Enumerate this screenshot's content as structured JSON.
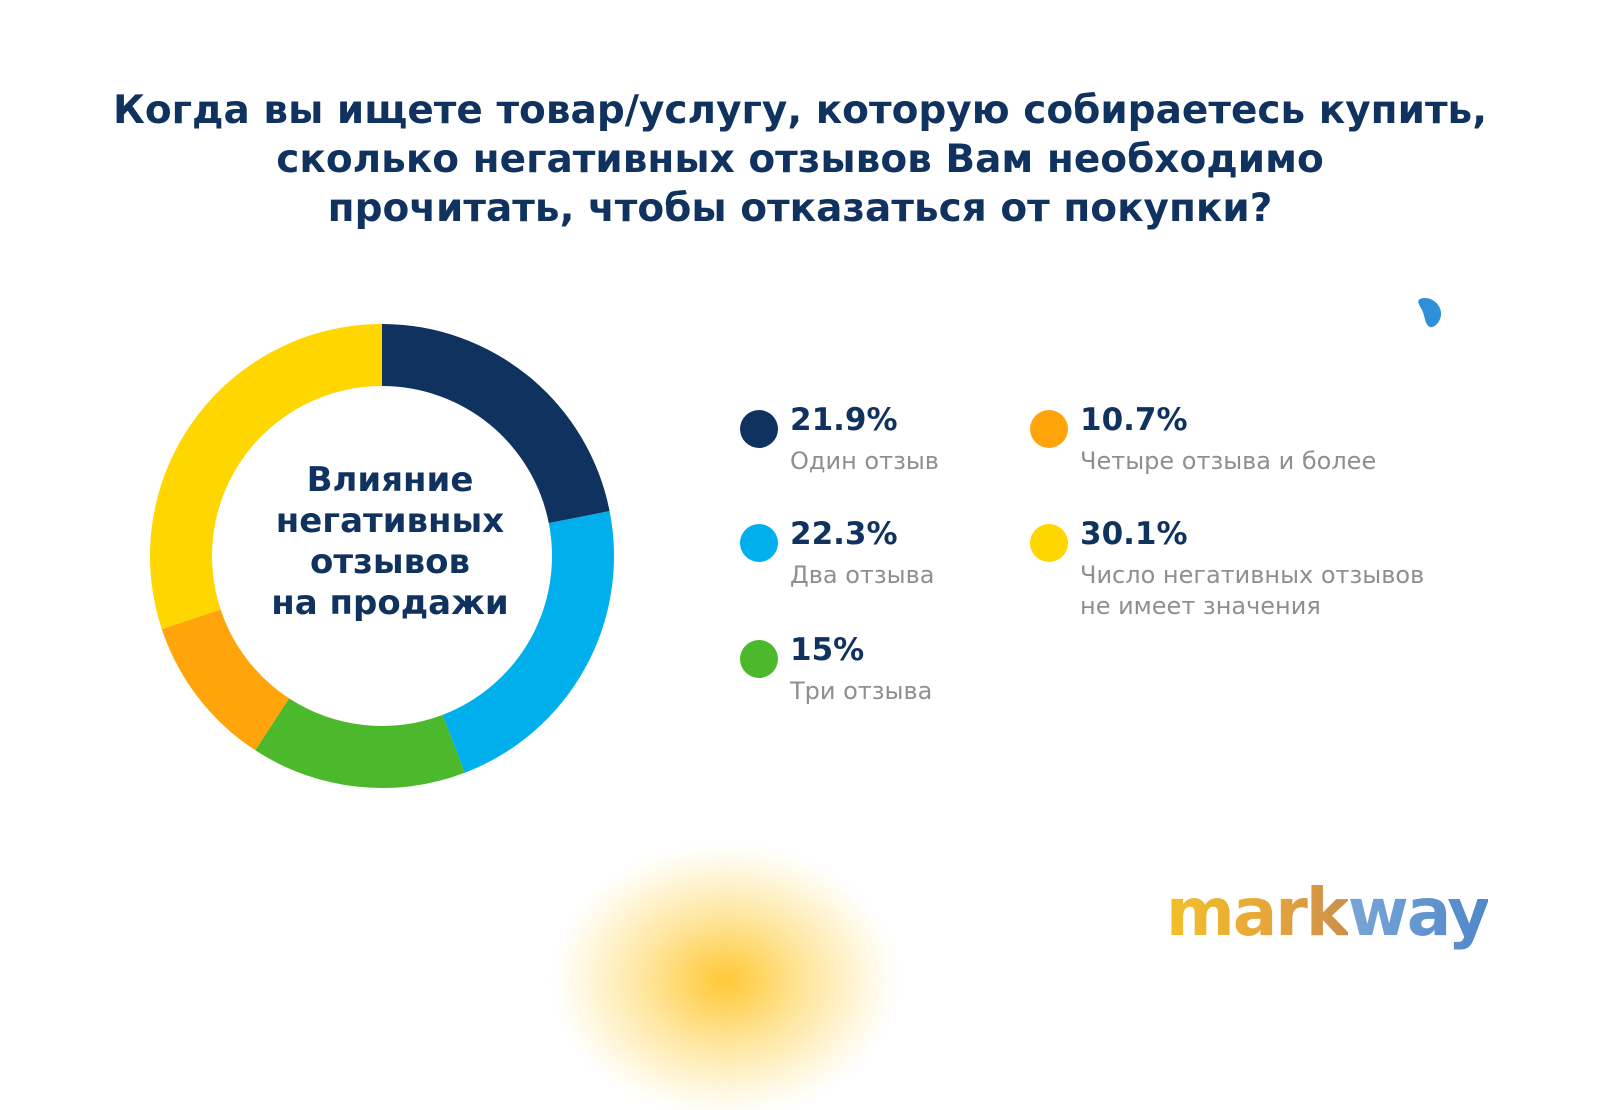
{
  "title_lines": [
    "Когда вы ищете товар/услугу, которую собираетесь купить,",
    "сколько негативных отзывов Вам необходимо",
    "прочитать, чтобы отказаться от покупки?"
  ],
  "center_label_lines": [
    "Влияние",
    "негативных",
    "отзывов",
    "на продажи"
  ],
  "legend": [
    {
      "value_text": "21.9%",
      "label_lines": [
        "Один отзыв"
      ]
    },
    {
      "value_text": "22.3%",
      "label_lines": [
        "Два отзыва"
      ]
    },
    {
      "value_text": "15%",
      "label_lines": [
        "Три отзыва"
      ]
    },
    {
      "value_text": "10.7%",
      "label_lines": [
        "Четыре отзыва и более"
      ]
    },
    {
      "value_text": "30.1%",
      "label_lines": [
        "Число негативных отзывов",
        "не имеет значения"
      ]
    }
  ],
  "chart_data": {
    "type": "pie",
    "style": "donut",
    "categories": [
      "Один отзыв",
      "Два отзыва",
      "Три отзыва",
      "Четыре отзыва и более",
      "Число негативных отзывов не имеет значения"
    ],
    "values": [
      21.9,
      22.3,
      15,
      10.7,
      30.1
    ],
    "colors": [
      "#10325f",
      "#00afec",
      "#4cb82c",
      "#ffa40b",
      "#ffd600"
    ]
  },
  "brand": {
    "logo_part_1": "mark",
    "logo_part_2": "way"
  },
  "decor_icon": "drop-icon"
}
